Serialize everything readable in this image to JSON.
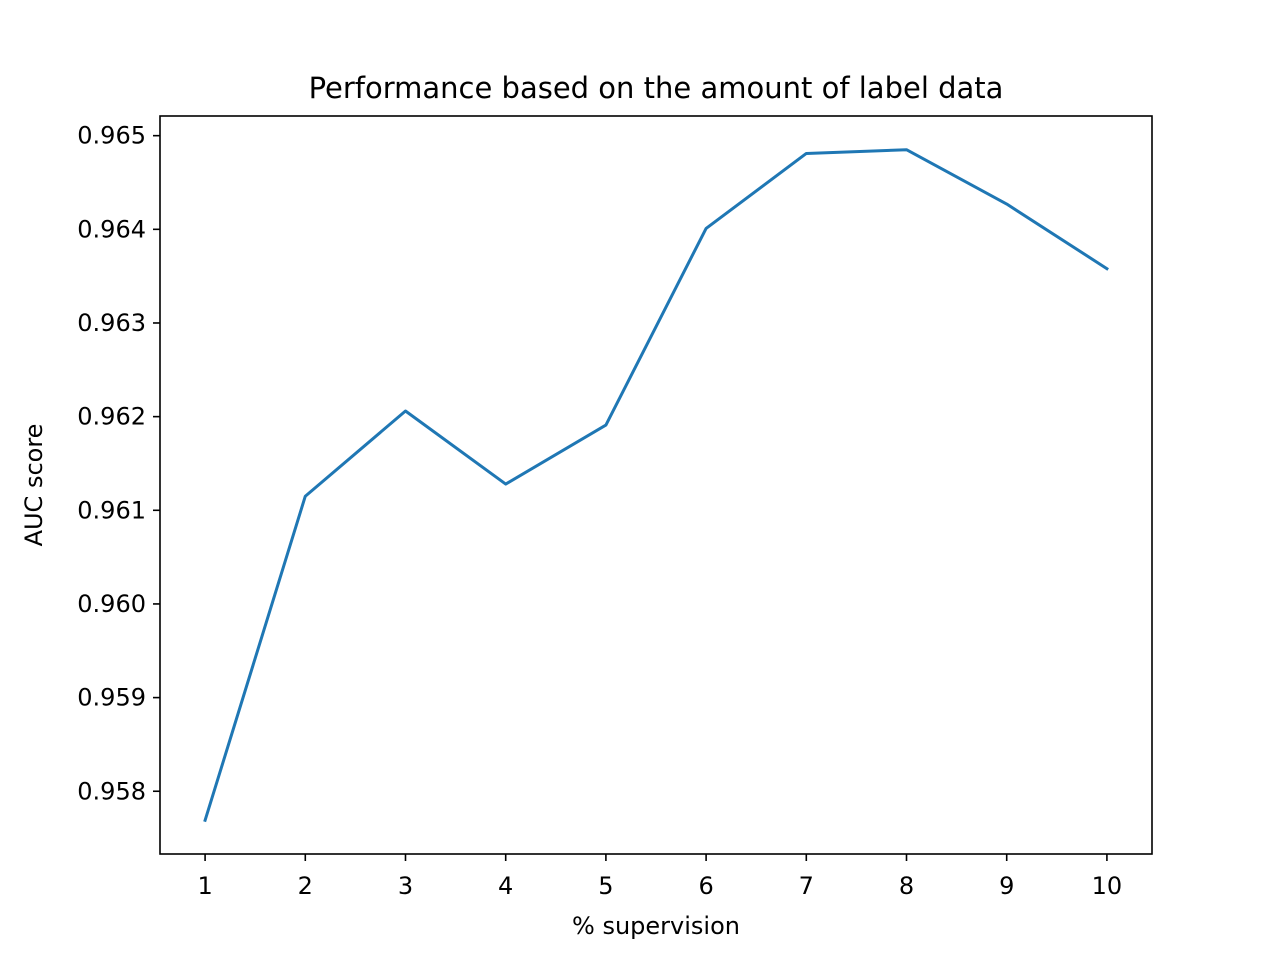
{
  "chart_data": {
    "type": "line",
    "title": "Performance based on the amount of label data",
    "xlabel": "% supervision",
    "ylabel": "AUC score",
    "x": [
      1,
      2,
      3,
      4,
      5,
      6,
      7,
      8,
      9,
      10
    ],
    "series": [
      {
        "values": [
          0.95769,
          0.96115,
          0.96206,
          0.96128,
          0.96191,
          0.96401,
          0.96481,
          0.96485,
          0.96427,
          0.96358
        ],
        "color": "#1f77b4"
      }
    ],
    "xticks": [
      1,
      2,
      3,
      4,
      5,
      6,
      7,
      8,
      9,
      10
    ],
    "yticks": [
      0.958,
      0.959,
      0.96,
      0.961,
      0.962,
      0.963,
      0.964,
      0.965
    ],
    "ytick_labels": [
      "0.958",
      "0.959",
      "0.960",
      "0.961",
      "0.962",
      "0.963",
      "0.964",
      "0.965"
    ],
    "xlim": [
      0.55,
      10.45
    ],
    "ylim": [
      0.95733,
      0.96521
    ],
    "grid": false,
    "legend": "none"
  }
}
